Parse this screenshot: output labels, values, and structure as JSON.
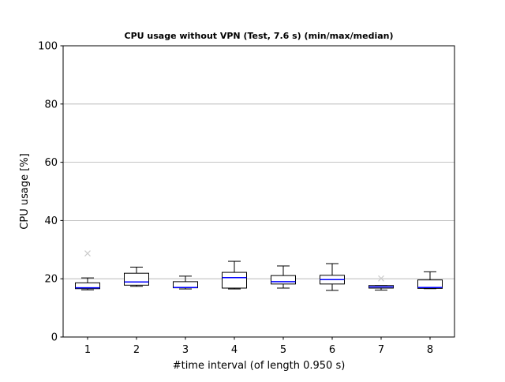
{
  "chart_data": {
    "type": "boxplot",
    "title": "CPU usage without VPN (Test, 7.6 s) (min/max/median)",
    "xlabel": "#time interval (of length 0.950 s)",
    "ylabel": "CPU usage [%]",
    "ylim": [
      0,
      100
    ],
    "yticks": [
      0,
      20,
      40,
      60,
      80,
      100
    ],
    "grid": "horizontal",
    "categories": [
      "1",
      "2",
      "3",
      "4",
      "5",
      "6",
      "7",
      "8"
    ],
    "boxes": [
      {
        "label": "1",
        "whisker_low": 16.2,
        "q1": 16.6,
        "median": 16.9,
        "q3": 18.6,
        "whisker_high": 20.3,
        "outliers": [
          28.7
        ]
      },
      {
        "label": "2",
        "whisker_low": 17.4,
        "q1": 17.8,
        "median": 18.9,
        "q3": 21.9,
        "whisker_high": 24.0,
        "outliers": []
      },
      {
        "label": "3",
        "whisker_low": 16.5,
        "q1": 16.9,
        "median": 17.0,
        "q3": 19.0,
        "whisker_high": 20.9,
        "outliers": []
      },
      {
        "label": "4",
        "whisker_low": 16.5,
        "q1": 16.8,
        "median": 20.4,
        "q3": 22.2,
        "whisker_high": 26.0,
        "outliers": []
      },
      {
        "label": "5",
        "whisker_low": 16.8,
        "q1": 18.2,
        "median": 19.0,
        "q3": 21.1,
        "whisker_high": 24.4,
        "outliers": []
      },
      {
        "label": "6",
        "whisker_low": 16.0,
        "q1": 18.2,
        "median": 19.7,
        "q3": 21.2,
        "whisker_high": 25.2,
        "outliers": []
      },
      {
        "label": "7",
        "whisker_low": 16.1,
        "q1": 16.8,
        "median": 17.2,
        "q3": 17.7,
        "whisker_high": 17.7,
        "outliers": [
          20.1
        ]
      },
      {
        "label": "8",
        "whisker_low": 16.6,
        "q1": 16.7,
        "median": 17.0,
        "q3": 19.6,
        "whisker_high": 22.4,
        "outliers": []
      }
    ],
    "colors": {
      "box": "#000000",
      "median": "#0000ff",
      "outlier": "#cccccc",
      "grid": "#b0b0b0"
    }
  }
}
